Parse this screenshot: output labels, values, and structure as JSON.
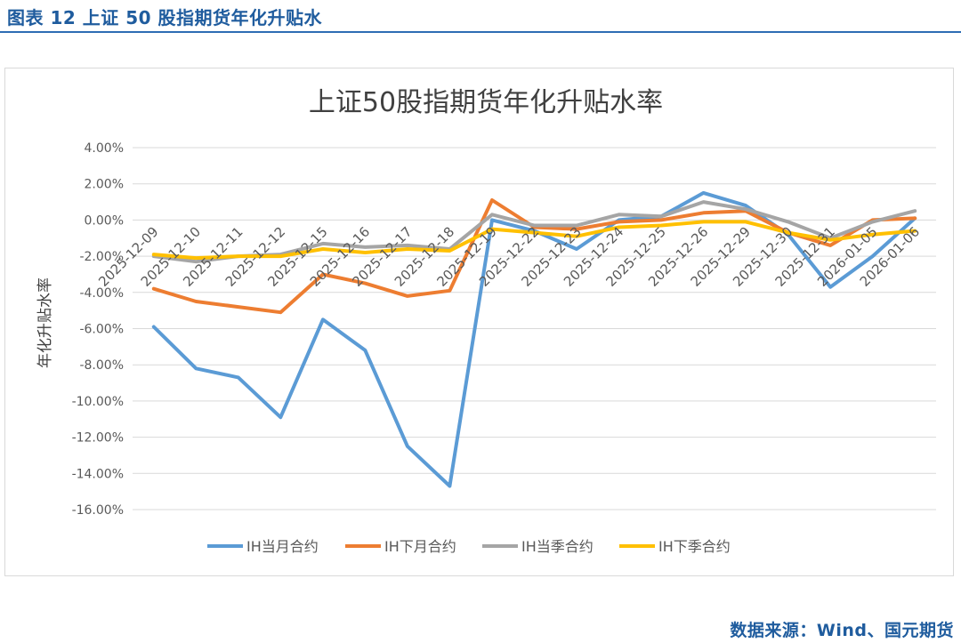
{
  "figure_caption": "图表 12  上证 50 股指期货年化升贴水",
  "source": "数据来源：Wind、国元期货",
  "chart_data": {
    "type": "line",
    "title": "上证50股指期货年化升贴水率",
    "ylabel": "年化升贴水率",
    "xlabel": "",
    "ylim": [
      -0.16,
      0.04
    ],
    "yticks": [
      0.04,
      0.02,
      0.0,
      -0.02,
      -0.04,
      -0.06,
      -0.08,
      -0.1,
      -0.12,
      -0.14,
      -0.16
    ],
    "ytick_labels": [
      "4.00%",
      "2.00%",
      "0.00%",
      "-2.00%",
      "-4.00%",
      "-6.00%",
      "-8.00%",
      "-10.00%",
      "-12.00%",
      "-14.00%",
      "-16.00%"
    ],
    "grid": true,
    "legend_position": "bottom",
    "categories": [
      "2025-12-09",
      "2025-12-10",
      "2025-12-11",
      "2025-12-12",
      "2025-12-15",
      "2025-12-16",
      "2025-12-17",
      "2025-12-18",
      "2025-12-19",
      "2025-12-22",
      "2025-12-23",
      "2025-12-24",
      "2025-12-25",
      "2025-12-26",
      "2025-12-29",
      "2025-12-30",
      "2025-12-31",
      "2026-01-05",
      "2026-01-06"
    ],
    "series": [
      {
        "name": "IH当月合约",
        "color": "#5B9BD5",
        "values": [
          -0.059,
          -0.082,
          -0.087,
          -0.109,
          -0.055,
          -0.072,
          -0.125,
          -0.147,
          0.0,
          -0.006,
          -0.016,
          0.0,
          0.002,
          0.015,
          0.008,
          -0.008,
          -0.037,
          -0.02,
          0.001
        ]
      },
      {
        "name": "IH下月合约",
        "color": "#ED7D31",
        "values": [
          -0.038,
          -0.045,
          -0.048,
          -0.051,
          -0.03,
          -0.035,
          -0.042,
          -0.039,
          0.011,
          -0.004,
          -0.005,
          -0.001,
          0.0,
          0.004,
          0.005,
          -0.007,
          -0.014,
          0.0,
          0.001
        ]
      },
      {
        "name": "IH当季合约",
        "color": "#A5A5A5",
        "values": [
          -0.02,
          -0.023,
          -0.02,
          -0.019,
          -0.013,
          -0.015,
          -0.014,
          -0.016,
          0.003,
          -0.003,
          -0.003,
          0.003,
          0.002,
          0.01,
          0.006,
          -0.001,
          -0.01,
          -0.001,
          0.005
        ]
      },
      {
        "name": "IH下季合约",
        "color": "#FFC000",
        "values": [
          -0.019,
          -0.021,
          -0.02,
          -0.02,
          -0.016,
          -0.018,
          -0.016,
          -0.017,
          -0.005,
          -0.007,
          -0.009,
          -0.004,
          -0.003,
          -0.001,
          -0.001,
          -0.007,
          -0.011,
          -0.008,
          -0.006
        ]
      }
    ]
  }
}
